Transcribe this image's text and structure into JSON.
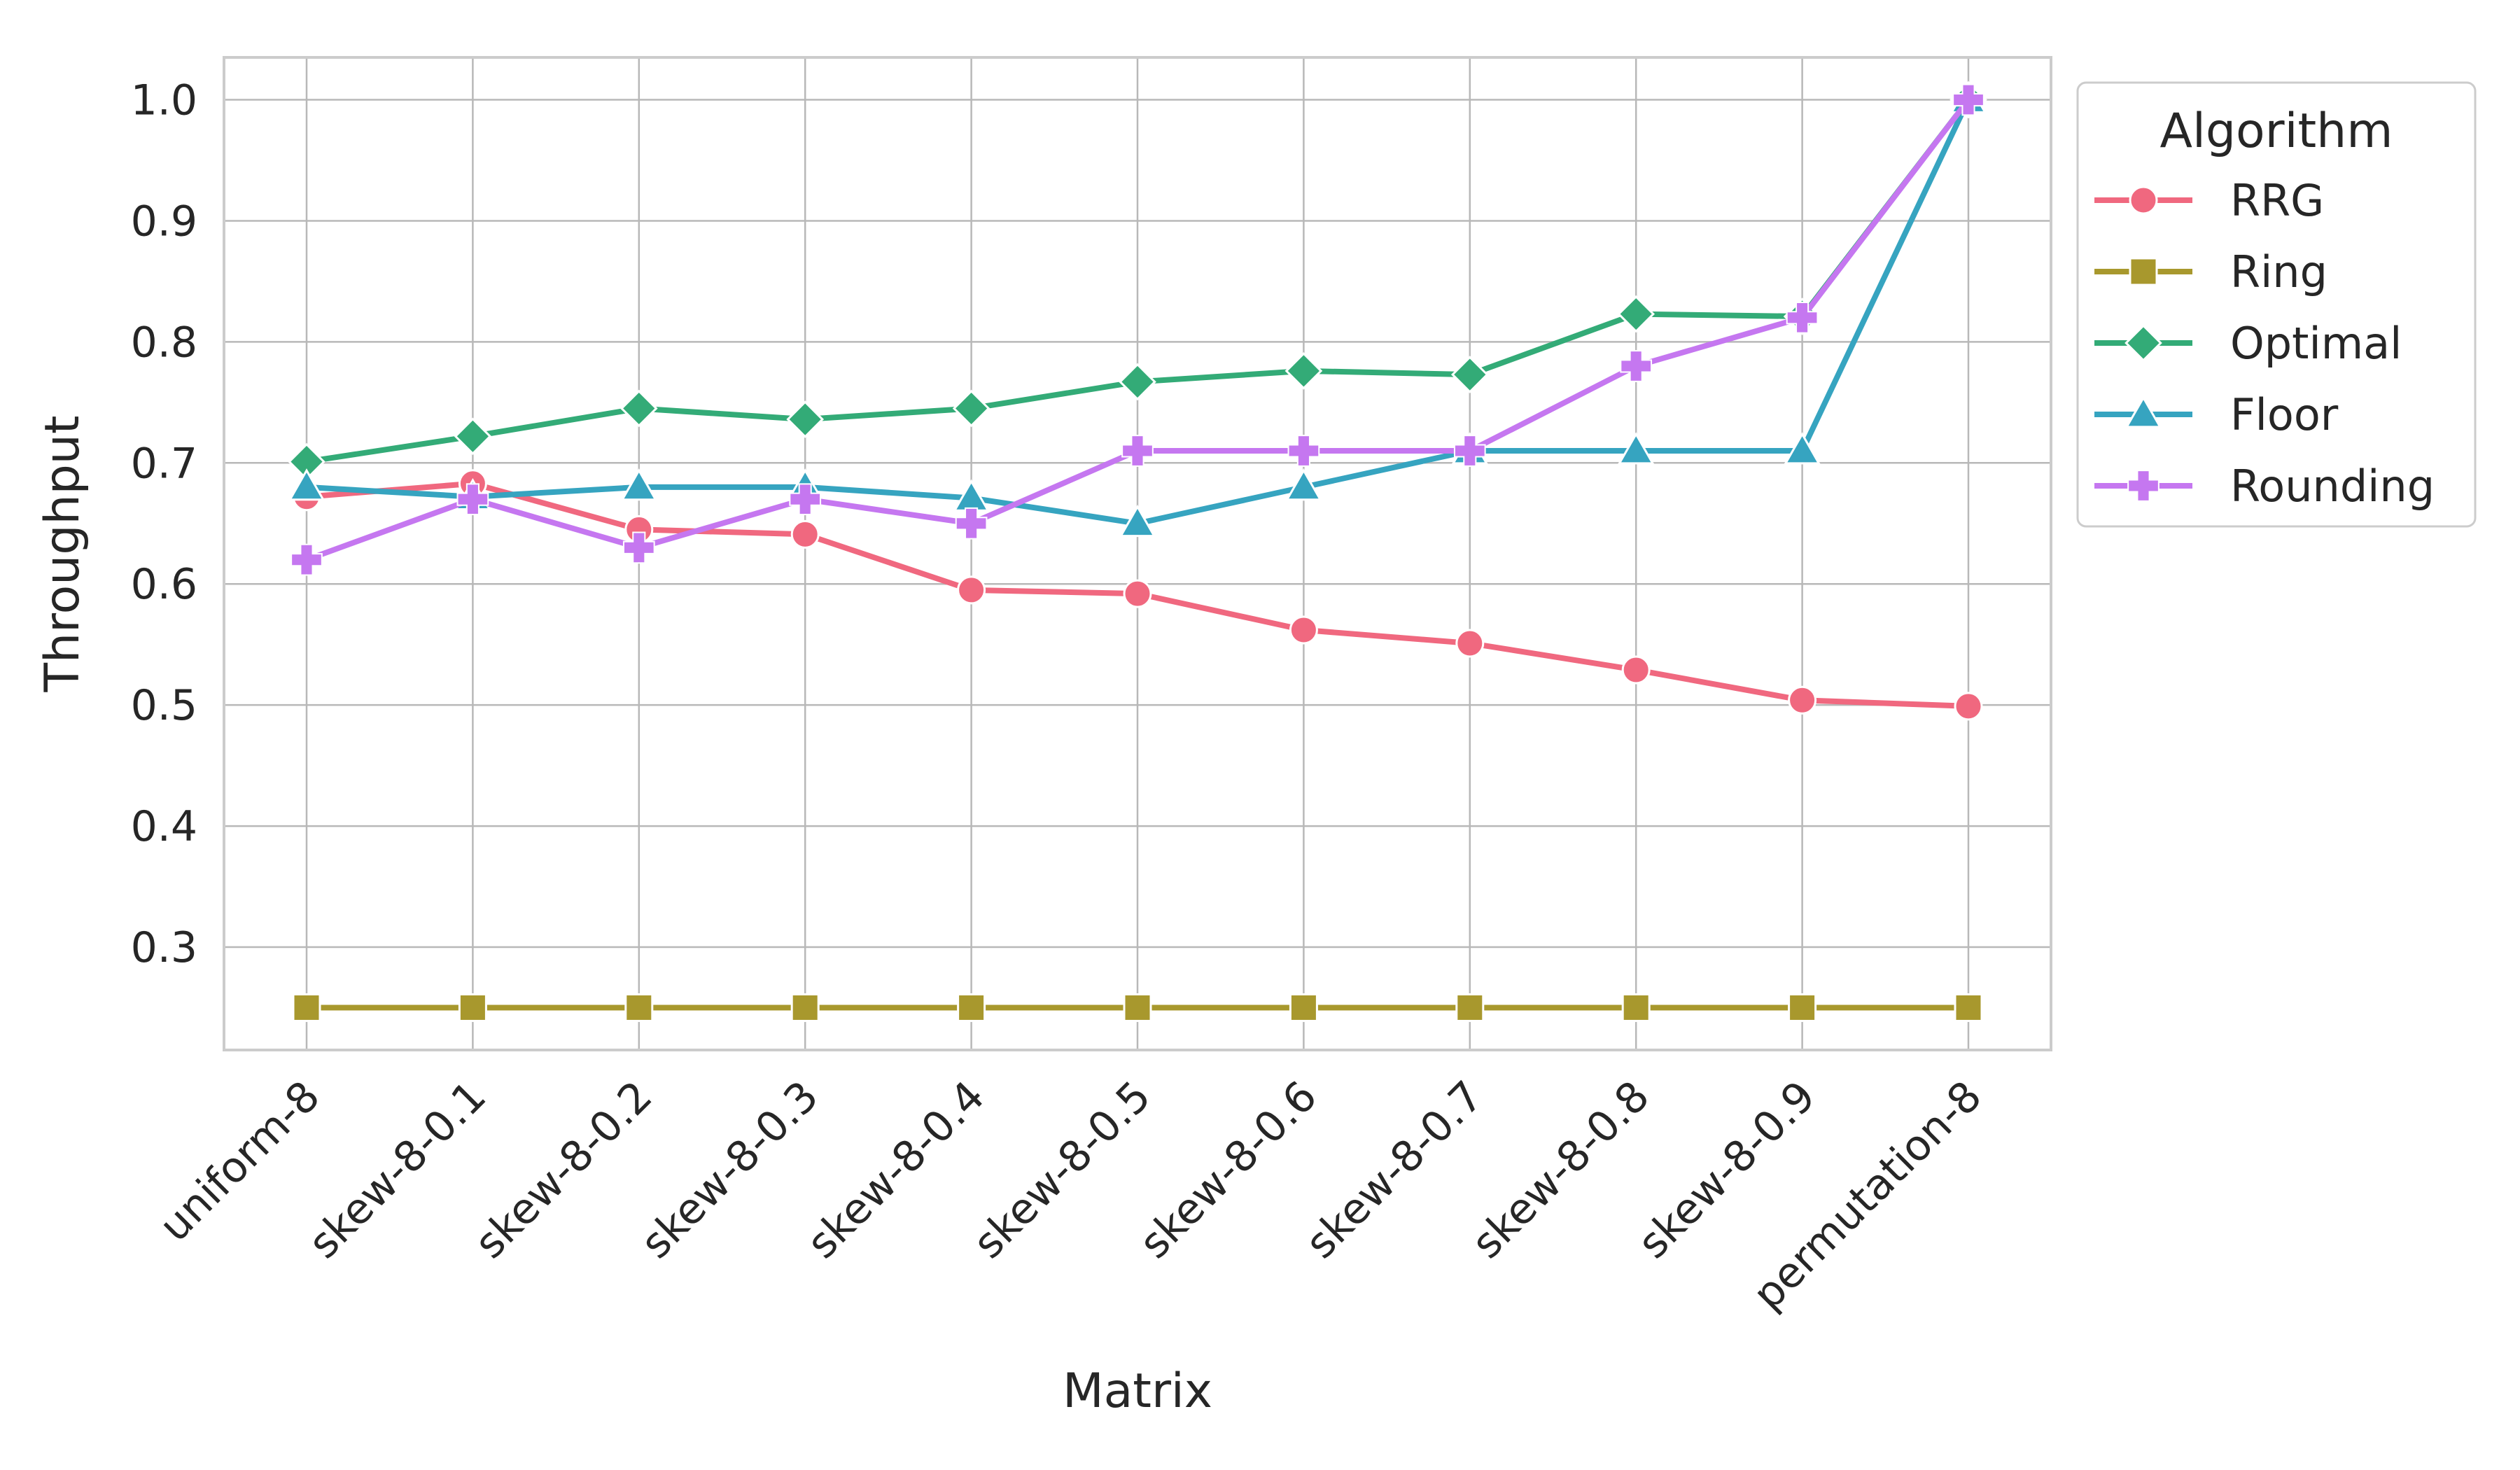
{
  "chart_data": {
    "type": "line",
    "xlabel": "Matrix",
    "ylabel": "Throughput",
    "ylim": [
      0.215,
      1.035
    ],
    "yticks": [
      0.3,
      0.4,
      0.5,
      0.6,
      0.7,
      0.8,
      0.9,
      1.0
    ],
    "grid": true,
    "legend": {
      "title": "Algorithm",
      "placement": "outside-top-right"
    },
    "categories": [
      "uniform-8",
      "skew-8-0.1",
      "skew-8-0.2",
      "skew-8-0.3",
      "skew-8-0.4",
      "skew-8-0.5",
      "skew-8-0.6",
      "skew-8-0.7",
      "skew-8-0.8",
      "skew-8-0.9",
      "permutation-8"
    ],
    "series": [
      {
        "name": "RRG",
        "color": "#f0687f",
        "marker": "circle",
        "values": [
          0.672,
          0.683,
          0.645,
          0.641,
          0.595,
          0.592,
          0.562,
          0.551,
          0.529,
          0.504,
          0.499
        ]
      },
      {
        "name": "Ring",
        "color": "#a8982d",
        "marker": "square",
        "values": [
          0.25,
          0.25,
          0.25,
          0.25,
          0.25,
          0.25,
          0.25,
          0.25,
          0.25,
          0.25,
          0.25
        ]
      },
      {
        "name": "Optimal",
        "color": "#33ab77",
        "marker": "diamond",
        "values": [
          0.701,
          0.722,
          0.745,
          0.736,
          0.745,
          0.767,
          0.776,
          0.773,
          0.823,
          0.821,
          1.0
        ]
      },
      {
        "name": "Floor",
        "color": "#36a4c0",
        "marker": "triangle",
        "values": [
          0.68,
          0.672,
          0.68,
          0.68,
          0.671,
          0.65,
          0.68,
          0.71,
          0.71,
          0.71,
          1.0
        ]
      },
      {
        "name": "Rounding",
        "color": "#c577f0",
        "marker": "plus",
        "values": [
          0.62,
          0.67,
          0.63,
          0.67,
          0.65,
          0.71,
          0.71,
          0.71,
          0.78,
          0.82,
          1.0
        ]
      }
    ]
  }
}
